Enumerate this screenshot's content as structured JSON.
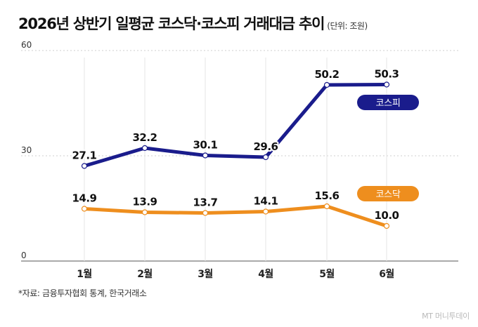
{
  "title": "2026년 상반기 일평균 코스닥·코스피 거래대금 추이",
  "unit": "(단위: 조원)",
  "source": "*자료: 금융투자협회 통계, 한국거래소",
  "brand": "MT 머니투데이",
  "chart_data": {
    "type": "line",
    "categories": [
      "1월",
      "2월",
      "3월",
      "4월",
      "5월",
      "6월"
    ],
    "series": [
      {
        "name": "코스피",
        "values": [
          27.1,
          32.2,
          30.1,
          29.6,
          50.2,
          50.3
        ],
        "color": "#1a1c8c"
      },
      {
        "name": "코스닥",
        "values": [
          14.9,
          13.9,
          13.7,
          14.1,
          15.6,
          10.0
        ],
        "color": "#ee8e1e"
      }
    ],
    "yticks": [
      0,
      30,
      60
    ],
    "ylim": [
      0,
      60
    ],
    "grid": true,
    "data_labels": true,
    "legend": "labels beside lines"
  }
}
